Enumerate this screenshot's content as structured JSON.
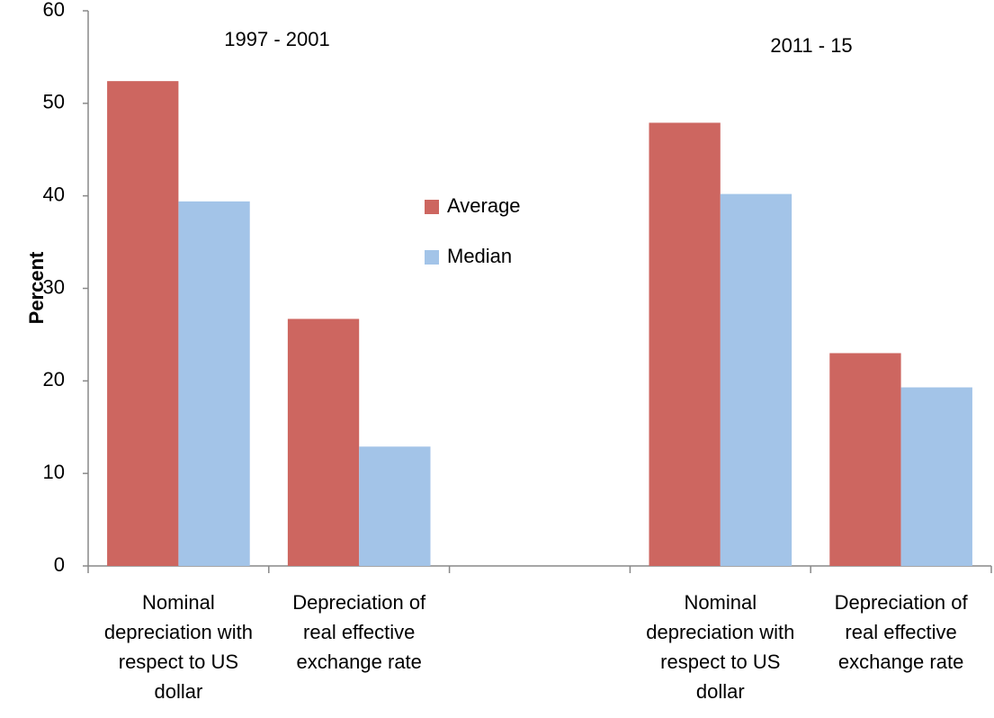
{
  "chart_data": {
    "type": "bar",
    "y_label": "Percent",
    "annotations": [
      "1997 - 2001",
      "2011 - 15"
    ],
    "categories": [
      "Nominal depreciation with respect to US dollar",
      "Depreciation of real effective exchange rate",
      null,
      "Nominal depreciation with respect to US dollar",
      "Depreciation of real effective exchange rate"
    ],
    "series": [
      {
        "name": "Average",
        "color": "#cd6660",
        "values": [
          52.4,
          26.7,
          null,
          47.9,
          23.0
        ]
      },
      {
        "name": "Median",
        "color": "#a3c4e8",
        "values": [
          39.4,
          12.9,
          null,
          40.2,
          19.3
        ]
      }
    ],
    "ylim": [
      0,
      60
    ],
    "yticks": [
      0,
      10,
      20,
      30,
      40,
      50,
      60
    ],
    "grid": false,
    "legend_position": "center"
  }
}
